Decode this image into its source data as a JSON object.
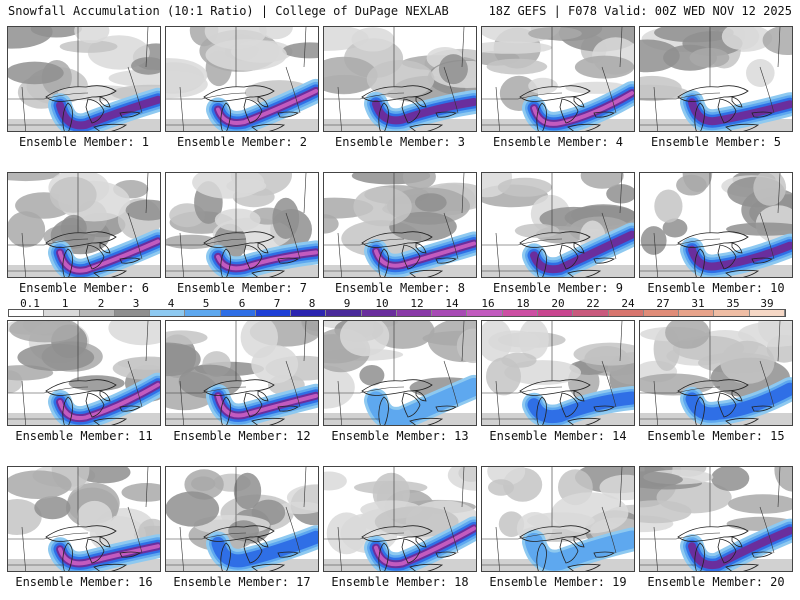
{
  "header": {
    "title_left": "Snowfall Accumulation (10:1 Ratio) | College of DuPage NEXLAB",
    "title_right": "18Z GEFS | F078 Valid: 00Z WED NOV 12 2025"
  },
  "colorbar": {
    "labels": [
      "0.1",
      "1",
      "2",
      "3",
      "4",
      "5",
      "6",
      "7",
      "8",
      "9",
      "10",
      "12",
      "14",
      "16",
      "18",
      "20",
      "22",
      "24",
      "27",
      "31",
      "35",
      "39"
    ],
    "colors": [
      "#ffffff",
      "#d9d9d9",
      "#b8b8b8",
      "#8f8f8f",
      "#8ec9f0",
      "#5ea8ef",
      "#2f6fe6",
      "#1e3fd6",
      "#2c25b0",
      "#4a2a9a",
      "#6a2e9d",
      "#8a3aa8",
      "#a84bb5",
      "#c25bbf",
      "#cc4fa3",
      "#c94690",
      "#c95a7d",
      "#d8756e",
      "#e08c78",
      "#e8a38a",
      "#efbda4",
      "#f6d8c6"
    ]
  },
  "ensemble_members": [
    {
      "label": "Ensemble Member: 1",
      "intensity": 3
    },
    {
      "label": "Ensemble Member: 2",
      "intensity": 4
    },
    {
      "label": "Ensemble Member: 3",
      "intensity": 3
    },
    {
      "label": "Ensemble Member: 4",
      "intensity": 4
    },
    {
      "label": "Ensemble Member: 5",
      "intensity": 3
    },
    {
      "label": "Ensemble Member: 6",
      "intensity": 4
    },
    {
      "label": "Ensemble Member: 7",
      "intensity": 4
    },
    {
      "label": "Ensemble Member: 8",
      "intensity": 4
    },
    {
      "label": "Ensemble Member: 9",
      "intensity": 3
    },
    {
      "label": "Ensemble Member: 10",
      "intensity": 3
    },
    {
      "label": "Ensemble Member: 11",
      "intensity": 4
    },
    {
      "label": "Ensemble Member: 12",
      "intensity": 4
    },
    {
      "label": "Ensemble Member: 13",
      "intensity": 1
    },
    {
      "label": "Ensemble Member: 14",
      "intensity": 2
    },
    {
      "label": "Ensemble Member: 15",
      "intensity": 2
    },
    {
      "label": "Ensemble Member: 16",
      "intensity": 4
    },
    {
      "label": "Ensemble Member: 17",
      "intensity": 2
    },
    {
      "label": "Ensemble Member: 18",
      "intensity": 4
    },
    {
      "label": "Ensemble Member: 19",
      "intensity": 1
    },
    {
      "label": "Ensemble Member: 20",
      "intensity": 3
    }
  ]
}
